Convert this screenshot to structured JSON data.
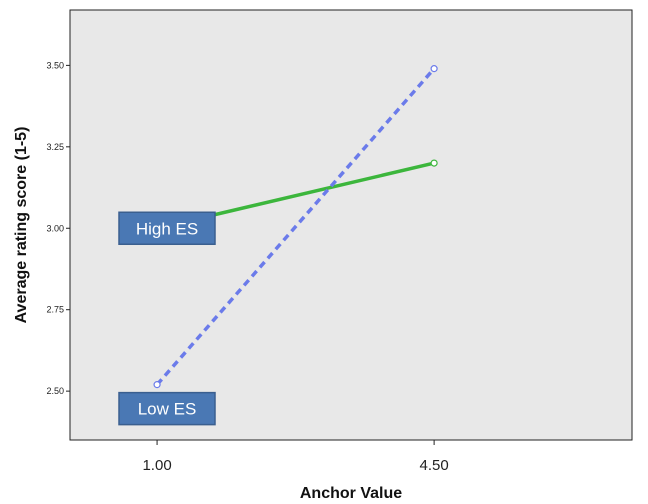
{
  "chart_data": {
    "type": "line",
    "title": "",
    "xlabel": "Anchor Value",
    "ylabel": "Average rating score (1-5)",
    "x": [
      "1.00",
      "4.50"
    ],
    "x_values": [
      1.0,
      4.5
    ],
    "xlim": [
      -0.1,
      7.0
    ],
    "ylim": [
      2.35,
      3.67
    ],
    "y_ticks": [
      "2.50",
      "2.75",
      "3.00",
      "3.25",
      "3.50"
    ],
    "y_tick_values": [
      2.5,
      2.75,
      3.0,
      3.25,
      3.5
    ],
    "grid": false,
    "series": [
      {
        "name": "High ES",
        "values": [
          3.0,
          3.2
        ],
        "color": "#3cb63c",
        "style": "solid"
      },
      {
        "name": "Low ES",
        "values": [
          2.52,
          3.49
        ],
        "color": "#6b7bea",
        "style": "dashed"
      }
    ],
    "colors": {
      "plot_background": "#e8e8e8",
      "label_box": "#4a78b4",
      "label_box_border": "#3a5f8f"
    }
  }
}
